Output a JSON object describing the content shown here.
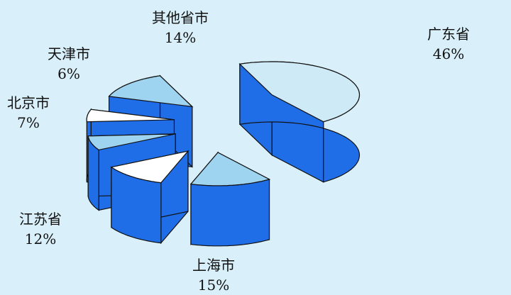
{
  "chart_data": {
    "type": "pie",
    "style": "3d-exploded",
    "title": "",
    "slices": [
      {
        "label": "广东省",
        "value": 46,
        "display": "46%"
      },
      {
        "label": "上海市",
        "value": 15,
        "display": "15%"
      },
      {
        "label": "江苏省",
        "value": 12,
        "display": "12%"
      },
      {
        "label": "北京市",
        "value": 7,
        "display": "7%"
      },
      {
        "label": "天津市",
        "value": 6,
        "display": "6%"
      },
      {
        "label": "其他省市",
        "value": 14,
        "display": "14%"
      }
    ],
    "colors": {
      "background": "#d9eff9",
      "side": "#1f6ee8",
      "top_light": "#cfeaf7",
      "top_mid": "#9fd4f0",
      "top_white": "#ffffff",
      "outline": "#111111"
    }
  }
}
